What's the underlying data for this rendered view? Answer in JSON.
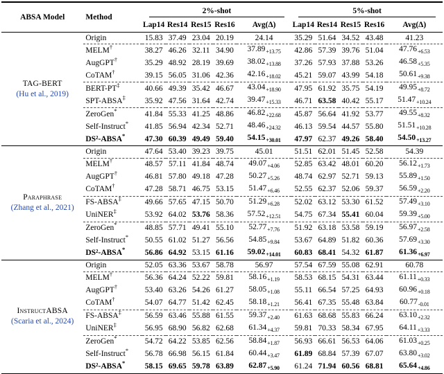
{
  "header": {
    "col_model": "ABSA Model",
    "col_method": "Method",
    "group_2shot": "2%-shot",
    "group_5shot": "5%-shot",
    "cols": [
      "Lap14",
      "Res14",
      "Res15",
      "Res16",
      "Avg(Δ)"
    ]
  },
  "groups": [
    {
      "model": "TAG-BERT",
      "cite": "(Hu et al., 2019)",
      "rows": [
        {
          "m": "Origin",
          "sup": "",
          "sep": false,
          "c2": [
            "15.83",
            "37.49",
            "23.04",
            "20.19"
          ],
          "a2": "24.14",
          "a2s": "",
          "c5": [
            "35.29",
            "51.64",
            "34.52",
            "43.48"
          ],
          "a5": "41.23",
          "a5s": ""
        },
        {
          "m": "MELM",
          "sup": "†",
          "sep": true,
          "c2": [
            "38.27",
            "46.26",
            "32.11",
            "34.90"
          ],
          "a2": "37.89",
          "a2s": "+13.75",
          "c5": [
            "42.86",
            "57.39",
            "39.76",
            "51.04"
          ],
          "a5": "47.76",
          "a5s": "+6.53"
        },
        {
          "m": "AugGPT",
          "sup": "†",
          "sep": false,
          "c2": [
            "35.29",
            "48.92",
            "28.19",
            "39.69"
          ],
          "a2": "38.02",
          "a2s": "+13.88",
          "c5": [
            "37.26",
            "57.93",
            "37.88",
            "53.26"
          ],
          "a5": "46.58",
          "a5s": "+5.35"
        },
        {
          "m": "CoTAM",
          "sup": "†",
          "sep": false,
          "c2": [
            "39.15",
            "56.05",
            "31.06",
            "42.36"
          ],
          "a2": "42.16",
          "a2s": "+18.02",
          "c5": [
            "45.21",
            "59.07",
            "43.99",
            "54.18"
          ],
          "a5": "50.61",
          "a5s": "+9.38"
        },
        {
          "m": "BERT-PT",
          "sup": "‡",
          "sep": true,
          "c2": [
            "40.66",
            "49.39",
            "35.42",
            "46.67"
          ],
          "a2": "43.04",
          "a2s": "+18.90",
          "c5": [
            "47.95",
            "61.92",
            "35.75",
            "54.19"
          ],
          "a5": "49.95",
          "a5s": "+8.72"
        },
        {
          "m": "SPT-ABSA",
          "sup": "‡",
          "sep": false,
          "c2": [
            "35.92",
            "47.56",
            "31.64",
            "42.74"
          ],
          "a2": "39.47",
          "a2s": "+15.33",
          "c5": [
            "46.71",
            "63.58",
            "40.42",
            "55.17"
          ],
          "b5": [
            0,
            1,
            0,
            0
          ],
          "a5": "51.47",
          "a5s": "+10.24"
        },
        {
          "m": "ZeroGen",
          "sup": "*",
          "sep": true,
          "c2": [
            "41.84",
            "55.33",
            "41.25",
            "48.86"
          ],
          "a2": "46.82",
          "a2s": "+22.68",
          "c5": [
            "45.87",
            "56.64",
            "41.92",
            "53.77"
          ],
          "a5": "49.55",
          "a5s": "+8.32"
        },
        {
          "m": "Self-Instruct",
          "sup": "*",
          "sep": false,
          "c2": [
            "41.85",
            "56.94",
            "42.34",
            "52.71"
          ],
          "a2": "48.46",
          "a2s": "+24.32",
          "c5": [
            "46.13",
            "59.54",
            "44.57",
            "55.80"
          ],
          "a5": "51.51",
          "a5s": "+10.28"
        },
        {
          "m": "DS²-ABSA",
          "sup": "*",
          "sep": false,
          "bm": 1,
          "c2": [
            "47.30",
            "60.39",
            "49.49",
            "59.40"
          ],
          "b2": [
            1,
            1,
            1,
            1
          ],
          "a2": "54.15",
          "a2s": "+30.01",
          "ba2": 1,
          "c5": [
            "47.97",
            "62.37",
            "49.26",
            "58.40"
          ],
          "b5": [
            1,
            0,
            1,
            1
          ],
          "a5": "54.50",
          "a5s": "+13.27",
          "ba5": 1
        }
      ]
    },
    {
      "model": "Paraphrase",
      "cite": "(Zhang et al., 2021)",
      "rows": [
        {
          "m": "Origin",
          "sup": "",
          "sep": false,
          "c2": [
            "47.64",
            "53.40",
            "39.23",
            "39.75"
          ],
          "a2": "45.01",
          "a2s": "",
          "c5": [
            "51.51",
            "62.01",
            "51.45",
            "52.58"
          ],
          "a5": "54.39",
          "a5s": ""
        },
        {
          "m": "MELM",
          "sup": "†",
          "sep": true,
          "c2": [
            "48.57",
            "57.11",
            "41.84",
            "48.74"
          ],
          "a2": "49.07",
          "a2s": "+4.06",
          "c5": [
            "52.85",
            "63.42",
            "48.01",
            "60.20"
          ],
          "a5": "56.12",
          "a5s": "+1.73"
        },
        {
          "m": "AugGPT",
          "sup": "†",
          "sep": false,
          "c2": [
            "46.81",
            "57.80",
            "49.18",
            "47.28"
          ],
          "a2": "50.27",
          "a2s": "+5.26",
          "c5": [
            "48.74",
            "62.97",
            "52.71",
            "59.13"
          ],
          "a5": "55.89",
          "a5s": "+1.50"
        },
        {
          "m": "CoTAM",
          "sup": "†",
          "sep": false,
          "c2": [
            "47.28",
            "58.71",
            "46.75",
            "53.15"
          ],
          "a2": "51.47",
          "a2s": "+6.46",
          "c5": [
            "52.55",
            "62.37",
            "52.06",
            "59.37"
          ],
          "a5": "56.59",
          "a5s": "+2.20"
        },
        {
          "m": "FS-ABSA",
          "sup": "‡",
          "sep": true,
          "c2": [
            "49.66",
            "57.65",
            "47.15",
            "50.70"
          ],
          "a2": "51.29",
          "a2s": "+6.28",
          "c5": [
            "52.02",
            "63.12",
            "53.30",
            "61.52"
          ],
          "a5": "57.49",
          "a5s": "+3.10"
        },
        {
          "m": "UniNER",
          "sup": "‡",
          "sep": false,
          "c2": [
            "53.92",
            "64.02",
            "53.76",
            "58.36"
          ],
          "b2": [
            0,
            0,
            1,
            0
          ],
          "a2": "57.52",
          "a2s": "+12.51",
          "c5": [
            "54.75",
            "67.34",
            "55.41",
            "60.04"
          ],
          "b5": [
            0,
            0,
            1,
            0
          ],
          "a5": "59.39",
          "a5s": "+5.00"
        },
        {
          "m": "ZeroGen",
          "sup": "*",
          "sep": true,
          "c2": [
            "48.85",
            "57.71",
            "49.41",
            "55.10"
          ],
          "a2": "52.77",
          "a2s": "+7.76",
          "c5": [
            "51.92",
            "63.18",
            "53.58",
            "59.19"
          ],
          "a5": "56.97",
          "a5s": "+2.58"
        },
        {
          "m": "Self-Instruct",
          "sup": "*",
          "sep": false,
          "c2": [
            "50.55",
            "61.02",
            "51.27",
            "56.56"
          ],
          "a2": "54.85",
          "a2s": "+9.84",
          "c5": [
            "53.67",
            "64.89",
            "51.82",
            "60.36"
          ],
          "a5": "57.69",
          "a5s": "+3.30"
        },
        {
          "m": "DS²-ABSA",
          "sup": "*",
          "sep": false,
          "bm": 1,
          "c2": [
            "56.86",
            "64.92",
            "53.15",
            "61.16"
          ],
          "b2": [
            1,
            1,
            0,
            1
          ],
          "a2": "59.02",
          "a2s": "+14.01",
          "ba2": 1,
          "c5": [
            "60.83",
            "68.41",
            "54.32",
            "61.87"
          ],
          "b5": [
            1,
            1,
            0,
            1
          ],
          "a5": "61.36",
          "a5s": "+6.97",
          "ba5": 1
        }
      ]
    },
    {
      "model": "InstructABSA",
      "cite": "(Scaria et al., 2024)",
      "rows": [
        {
          "m": "Origin",
          "sup": "",
          "sep": false,
          "c2": [
            "52.05",
            "63.36",
            "53.67",
            "58.78"
          ],
          "a2": "56.97",
          "a2s": "",
          "c5": [
            "57.54",
            "67.59",
            "55.08",
            "62.91"
          ],
          "a5": "60.78",
          "a5s": ""
        },
        {
          "m": "MELM",
          "sup": "†",
          "sep": true,
          "c2": [
            "56.36",
            "64.24",
            "52.22",
            "59.81"
          ],
          "a2": "58.16",
          "a2s": "+1.19",
          "c5": [
            "58.53",
            "68.15",
            "54.31",
            "63.44"
          ],
          "a5": "61.11",
          "a5s": "+0.33"
        },
        {
          "m": "AugGPT",
          "sup": "†",
          "sep": false,
          "c2": [
            "53.40",
            "63.26",
            "54.26",
            "61.27"
          ],
          "a2": "58.05",
          "a2s": "+1.08",
          "c5": [
            "55.11",
            "66.54",
            "57.25",
            "64.93"
          ],
          "a5": "60.96",
          "a5s": "+0.18"
        },
        {
          "m": "CoTAM",
          "sup": "†",
          "sep": false,
          "c2": [
            "54.07",
            "64.77",
            "51.42",
            "62.45"
          ],
          "a2": "58.18",
          "a2s": "+1.21",
          "c5": [
            "56.41",
            "67.35",
            "55.48",
            "63.84"
          ],
          "a5": "60.77",
          "a5s": "-0.01"
        },
        {
          "m": "FS-ABSA",
          "sup": "‡",
          "sep": true,
          "c2": [
            "56.59",
            "63.46",
            "55.88",
            "61.55"
          ],
          "a2": "59.37",
          "a2s": "+2.40",
          "c5": [
            "61.63",
            "68.68",
            "55.83",
            "66.24"
          ],
          "a5": "63.10",
          "a5s": "+2.32"
        },
        {
          "m": "UniNER",
          "sup": "‡",
          "sep": false,
          "c2": [
            "56.95",
            "68.90",
            "56.82",
            "62.68"
          ],
          "a2": "61.34",
          "a2s": "+4.37",
          "c5": [
            "59.81",
            "70.33",
            "58.34",
            "67.95"
          ],
          "a5": "64.11",
          "a5s": "+3.33"
        },
        {
          "m": "ZeroGen",
          "sup": "*",
          "sep": true,
          "c2": [
            "54.72",
            "64.22",
            "53.85",
            "62.56"
          ],
          "a2": "58.84",
          "a2s": "+1.87",
          "c5": [
            "56.93",
            "66.61",
            "56.53",
            "64.06"
          ],
          "a5": "61.03",
          "a5s": "+0.25"
        },
        {
          "m": "Self-Instruct",
          "sup": "*",
          "sep": false,
          "c2": [
            "56.78",
            "66.98",
            "56.15",
            "61.84"
          ],
          "a2": "60.44",
          "a2s": "+3.47",
          "c5": [
            "61.89",
            "68.84",
            "57.39",
            "67.07"
          ],
          "b5": [
            1,
            0,
            0,
            0
          ],
          "a5": "63.80",
          "a5s": "+3.02"
        },
        {
          "m": "DS²-ABSA",
          "sup": "*",
          "sep": false,
          "bm": 1,
          "c2": [
            "58.15",
            "69.65",
            "59.78",
            "63.89"
          ],
          "b2": [
            1,
            1,
            1,
            1
          ],
          "a2": "62.87",
          "a2s": "+5.90",
          "ba2": 1,
          "c5": [
            "61.24",
            "71.94",
            "60.56",
            "68.81"
          ],
          "b5": [
            0,
            1,
            1,
            1
          ],
          "a5": "65.64",
          "a5s": "+4.86",
          "ba5": 1
        }
      ]
    }
  ],
  "colors": {
    "citation_blue": "#2547ab",
    "text": "#000000",
    "background": "#ffffff"
  }
}
